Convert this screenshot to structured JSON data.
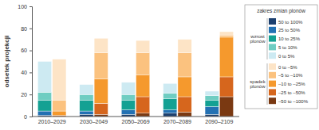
{
  "chart_data": {
    "type": "bar",
    "stacked": true,
    "y_label": "odsetek projekcji",
    "categories": [
      "2010–2029",
      "2030–2049",
      "2050–2069",
      "2070–2089",
      "2090–2109"
    ],
    "ylim": [
      0,
      100
    ],
    "yticks": [
      0,
      20,
      40,
      60,
      80,
      100
    ],
    "legend": "right",
    "legend_title": "zakres zmian plonów",
    "groups": [
      {
        "name": "wzrost plonów",
        "series": [
          {
            "name": "50 to 100%",
            "color": "#1c3f6e",
            "values": [
              1,
              2,
              2,
              3,
              2
            ]
          },
          {
            "name": "25 to 50%",
            "color": "#2371b3",
            "values": [
              4,
              3,
              4,
              3,
              7
            ]
          },
          {
            "name": "10 to 25%",
            "color": "#14a193",
            "values": [
              10,
              10,
              9,
              10,
              6
            ]
          },
          {
            "name": "5 to 10%",
            "color": "#6fcdc2",
            "values": [
              7,
              5,
              5,
              5,
              4
            ]
          },
          {
            "name": "0 to 5%",
            "color": "#cdeaf2",
            "values": [
              28,
              9,
              11,
              9,
              4
            ]
          }
        ]
      },
      {
        "name": "spadek plonów",
        "series": [
          {
            "name": "0 to –5%",
            "color": "#fde4c6",
            "values": [
              37,
              13,
              11,
              12,
              3
            ]
          },
          {
            "name": "–5 to –10%",
            "color": "#fbc27f",
            "values": [
              10,
              24,
              20,
              22,
              2
            ]
          },
          {
            "name": "–10 to –25%",
            "color": "#f5992d",
            "values": [
              4,
              22,
              20,
              18,
              36
            ]
          },
          {
            "name": "–25 to –50%",
            "color": "#d6661d",
            "values": [
              1,
              10,
              15,
              14,
              18
            ]
          },
          {
            "name": "–50 to –100%",
            "color": "#7a3912",
            "values": [
              0,
              2,
              3,
              4,
              18
            ]
          }
        ]
      }
    ]
  }
}
